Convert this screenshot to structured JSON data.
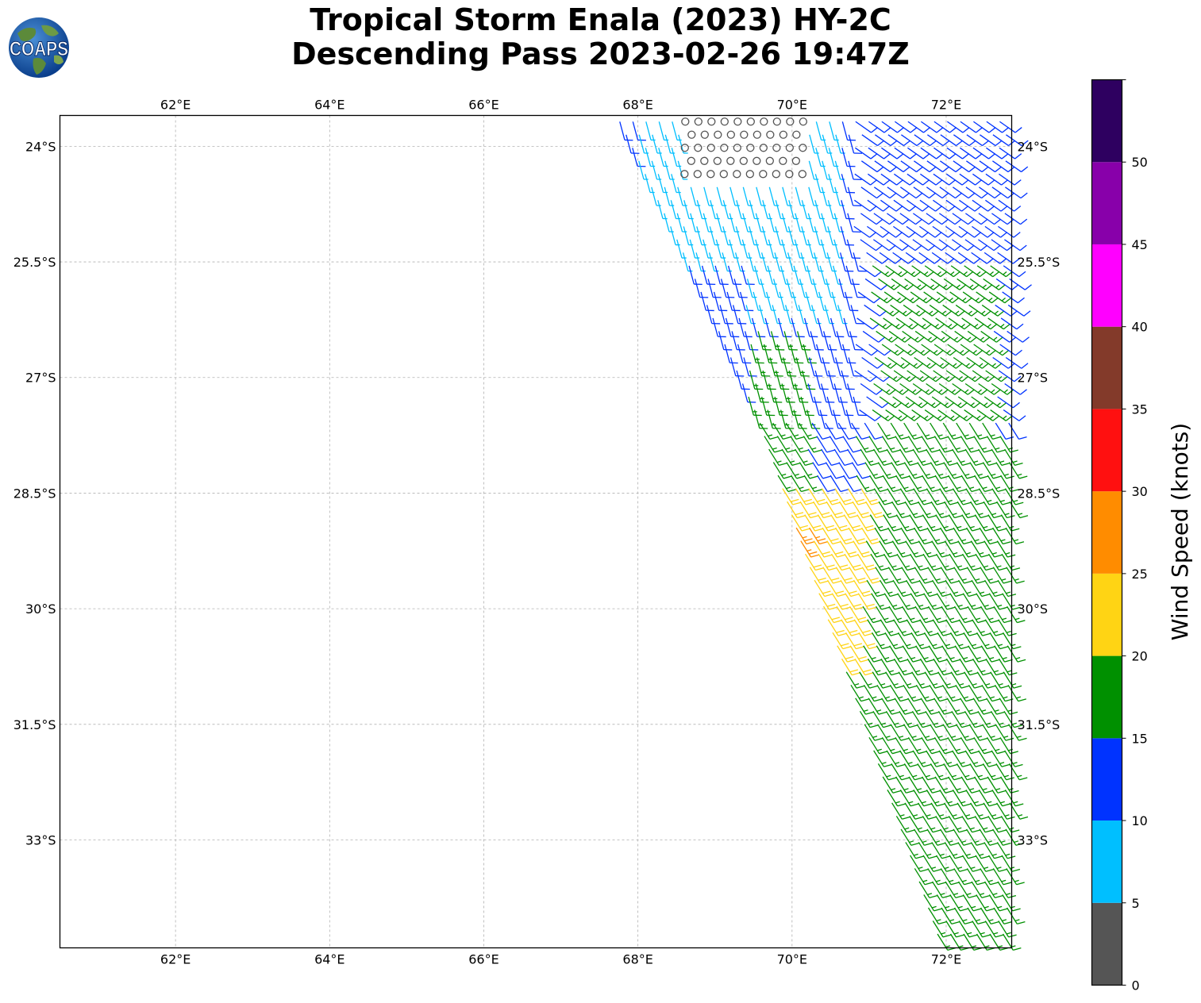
{
  "title": {
    "line1": "Tropical Storm Enala (2023) HY-2C",
    "line2": "Descending Pass 2023-02-26 19:47Z"
  },
  "logo": {
    "text": "COAPS",
    "icon": "globe-logo-icon"
  },
  "map": {
    "lon_range": [
      60.5,
      72.85
    ],
    "lat_range": [
      -34.4,
      -23.6
    ],
    "gridlines": true,
    "lon_ticks": [
      {
        "value": 62,
        "label": "62°E"
      },
      {
        "value": 64,
        "label": "64°E"
      },
      {
        "value": 66,
        "label": "66°E"
      },
      {
        "value": 68,
        "label": "68°E"
      },
      {
        "value": 70,
        "label": "70°E"
      },
      {
        "value": 72,
        "label": "72°E"
      }
    ],
    "lat_ticks": [
      {
        "value": -24,
        "label": "24°S"
      },
      {
        "value": -25.5,
        "label": "25.5°S"
      },
      {
        "value": -27,
        "label": "27°S"
      },
      {
        "value": -28.5,
        "label": "28.5°S"
      },
      {
        "value": -30,
        "label": "30°S"
      },
      {
        "value": -31.5,
        "label": "31.5°S"
      },
      {
        "value": -33,
        "label": "33°S"
      }
    ],
    "swath": {
      "left_edge": [
        [
          67.7,
          -23.65
        ],
        [
          68.5,
          -25.3
        ],
        [
          69.5,
          -27.5
        ],
        [
          71.9,
          -34.4
        ]
      ],
      "right_edge": [
        [
          72.85,
          -23.65
        ],
        [
          72.85,
          -34.4
        ]
      ]
    }
  },
  "colorbar": {
    "label": "Wind Speed (knots)",
    "ticks": [
      "0",
      "5",
      "10",
      "15",
      "20",
      "25",
      "30",
      "35",
      "40",
      "45",
      "50"
    ],
    "bins": [
      {
        "min": 0,
        "max": 5,
        "color": "#555555"
      },
      {
        "min": 5,
        "max": 10,
        "color": "#00BFFF"
      },
      {
        "min": 10,
        "max": 15,
        "color": "#0033FF"
      },
      {
        "min": 15,
        "max": 20,
        "color": "#009000"
      },
      {
        "min": 20,
        "max": 25,
        "color": "#FFD414"
      },
      {
        "min": 25,
        "max": 30,
        "color": "#FF8C00"
      },
      {
        "min": 30,
        "max": 35,
        "color": "#FF1010"
      },
      {
        "min": 35,
        "max": 40,
        "color": "#833A2A"
      },
      {
        "min": 40,
        "max": 45,
        "color": "#FF00FF"
      },
      {
        "min": 45,
        "max": 50,
        "color": "#8800AA"
      },
      {
        "min": 50,
        "max": 55,
        "color": "#2E0060"
      }
    ]
  }
}
